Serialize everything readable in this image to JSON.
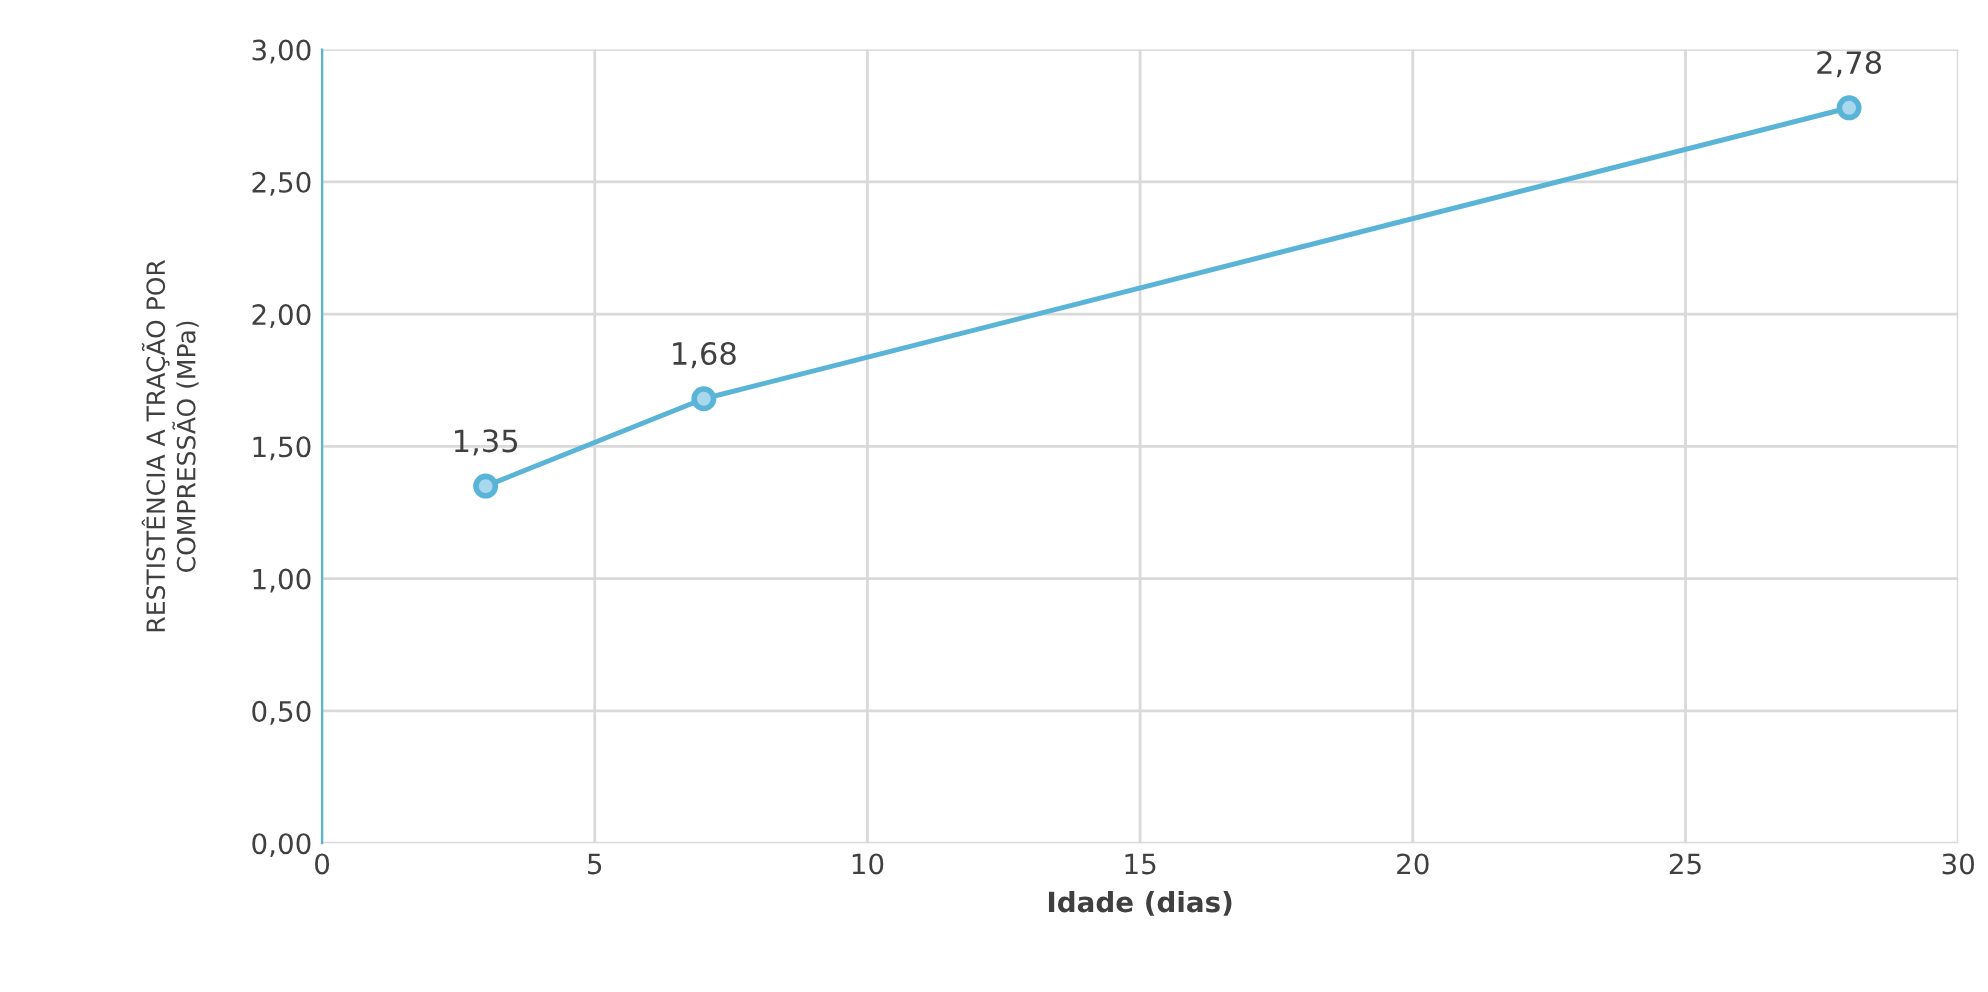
{
  "chart_data": {
    "type": "line",
    "xlabel": "Idade (dias)",
    "ylabel": "RESTISTÊNCIA A TRAÇÃO POR\nCOMPRESSÃO (MPa)",
    "x": [
      3,
      7,
      28
    ],
    "series": [
      {
        "color": "#5ab4d8",
        "values": [
          1.35,
          1.68,
          2.78
        ],
        "value_labels": [
          "1,35",
          "1,68",
          "2,78"
        ]
      }
    ],
    "xlim": [
      0,
      30
    ],
    "xticks": [
      0,
      5,
      10,
      15,
      20,
      25,
      30
    ],
    "ylim": [
      0,
      3
    ],
    "yticks": [
      {
        "value": 0,
        "label": "0,00"
      },
      {
        "value": 0.5,
        "label": "0,50"
      },
      {
        "value": 1,
        "label": "1,00"
      },
      {
        "value": 1.5,
        "label": "1,50"
      },
      {
        "value": 2,
        "label": "2,00"
      },
      {
        "value": 2.5,
        "label": "2,50"
      },
      {
        "value": 3,
        "label": "3,00"
      }
    ],
    "grid": true,
    "marker": "circle",
    "line_style": "solid"
  }
}
